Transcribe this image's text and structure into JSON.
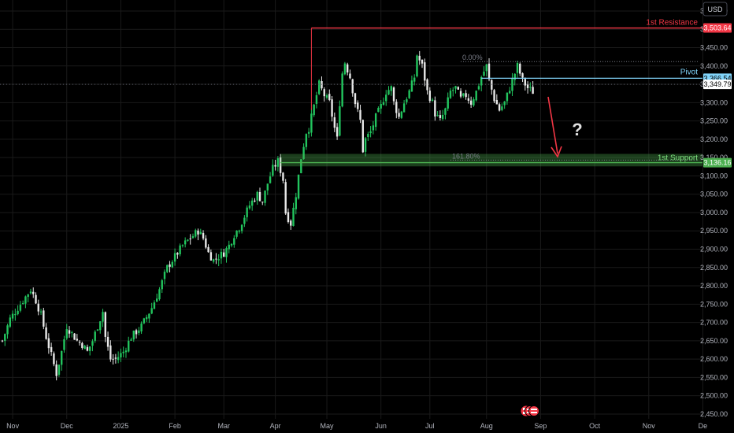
{
  "currency_button": "USD",
  "chart_data": {
    "type": "candlestick",
    "y_ticks": [
      3550,
      3500,
      3450,
      3400,
      3350,
      3300,
      3250,
      3200,
      3150,
      3100,
      3050,
      3000,
      2950,
      2900,
      2850,
      2800,
      2750,
      2700,
      2650,
      2600,
      2550,
      2500,
      2450
    ],
    "y_tick_labels": [
      "3,550.00",
      "3,500.00",
      "3,450.00",
      "3,400.00",
      "3,350.00",
      "3,300.00",
      "3,250.00",
      "3,200.00",
      "3,150.00",
      "3,100.00",
      "3,050.00",
      "3,000.00",
      "2,950.00",
      "2,900.00",
      "2,850.00",
      "2,800.00",
      "2,750.00",
      "2,700.00",
      "2,650.00",
      "2,600.00",
      "2,550.00",
      "2,500.00",
      "2,450.00"
    ],
    "ylim": [
      2437,
      3580
    ],
    "x_ticks": [
      {
        "label": "Nov",
        "i": 4
      },
      {
        "label": "Dec",
        "i": 25
      },
      {
        "label": "2025",
        "i": 46
      },
      {
        "label": "Feb",
        "i": 67
      },
      {
        "label": "Mar",
        "i": 86
      },
      {
        "label": "Apr",
        "i": 106
      },
      {
        "label": "May",
        "i": 126
      },
      {
        "label": "Jun",
        "i": 147
      },
      {
        "label": "Jul",
        "i": 166
      },
      {
        "label": "Aug",
        "i": 188
      },
      {
        "label": "Sep",
        "i": 209
      },
      {
        "label": "Oct",
        "i": 230
      },
      {
        "label": "Nov",
        "i": 251
      },
      {
        "label": "De",
        "i": 272
      }
    ],
    "n_slots": 274,
    "anchors": [
      [
        0,
        2650
      ],
      [
        3,
        2710
      ],
      [
        6,
        2740
      ],
      [
        9,
        2770
      ],
      [
        11,
        2790
      ],
      [
        13,
        2760
      ],
      [
        15,
        2720
      ],
      [
        17,
        2660
      ],
      [
        19,
        2610
      ],
      [
        21,
        2560
      ],
      [
        23,
        2620
      ],
      [
        25,
        2690
      ],
      [
        27,
        2670
      ],
      [
        29,
        2650
      ],
      [
        31,
        2640
      ],
      [
        33,
        2620
      ],
      [
        35,
        2650
      ],
      [
        37,
        2690
      ],
      [
        39,
        2730
      ],
      [
        40,
        2660
      ],
      [
        42,
        2600
      ],
      [
        44,
        2600
      ],
      [
        47,
        2620
      ],
      [
        50,
        2660
      ],
      [
        54,
        2690
      ],
      [
        58,
        2740
      ],
      [
        61,
        2790
      ],
      [
        64,
        2850
      ],
      [
        67,
        2880
      ],
      [
        70,
        2910
      ],
      [
        73,
        2930
      ],
      [
        76,
        2950
      ],
      [
        78,
        2930
      ],
      [
        80,
        2890
      ],
      [
        82,
        2870
      ],
      [
        84,
        2880
      ],
      [
        86,
        2890
      ],
      [
        88,
        2910
      ],
      [
        90,
        2940
      ],
      [
        92,
        2960
      ],
      [
        94,
        2990
      ],
      [
        96,
        3020
      ],
      [
        99,
        3050
      ],
      [
        101,
        3030
      ],
      [
        103,
        3080
      ],
      [
        105,
        3120
      ],
      [
        107,
        3140
      ],
      [
        109,
        3090
      ],
      [
        110,
        3000
      ],
      [
        112,
        2970
      ],
      [
        114,
        3050
      ],
      [
        116,
        3150
      ],
      [
        118,
        3220
      ],
      [
        119,
        3230
      ],
      [
        121,
        3290
      ],
      [
        123,
        3350
      ],
      [
        125,
        3320
      ],
      [
        127,
        3300
      ],
      [
        129,
        3230
      ],
      [
        130,
        3200
      ],
      [
        131,
        3300
      ],
      [
        132,
        3380
      ],
      [
        133,
        3410
      ],
      [
        135,
        3370
      ],
      [
        137,
        3300
      ],
      [
        139,
        3250
      ],
      [
        140,
        3170
      ],
      [
        141,
        3200
      ],
      [
        143,
        3220
      ],
      [
        145,
        3260
      ],
      [
        147,
        3290
      ],
      [
        149,
        3330
      ],
      [
        151,
        3340
      ],
      [
        152,
        3300
      ],
      [
        154,
        3260
      ],
      [
        156,
        3300
      ],
      [
        158,
        3330
      ],
      [
        160,
        3370
      ],
      [
        161,
        3430
      ],
      [
        163,
        3400
      ],
      [
        165,
        3330
      ],
      [
        167,
        3300
      ],
      [
        168,
        3270
      ],
      [
        170,
        3250
      ],
      [
        172,
        3280
      ],
      [
        174,
        3330
      ],
      [
        176,
        3340
      ],
      [
        178,
        3310
      ],
      [
        180,
        3320
      ],
      [
        182,
        3300
      ],
      [
        184,
        3330
      ],
      [
        186,
        3370
      ],
      [
        188,
        3400
      ],
      [
        189,
        3360
      ],
      [
        191,
        3310
      ],
      [
        193,
        3280
      ],
      [
        195,
        3300
      ],
      [
        197,
        3340
      ],
      [
        199,
        3380
      ],
      [
        200,
        3400
      ],
      [
        202,
        3360
      ],
      [
        204,
        3340
      ],
      [
        206,
        3330
      ]
    ],
    "levels": {
      "resistance": {
        "label": "1st Resistance",
        "price": 3503.64,
        "price_label": "3,503.64",
        "color": "#f23645",
        "start_i": 120
      },
      "pivot": {
        "label": "Pivot",
        "price": 3366.54,
        "price_label": "3,366.54",
        "color": "#81d4fa",
        "start_i": 186
      },
      "support": {
        "label": "1st Support",
        "price": 3136.16,
        "price_label": "3,136.16",
        "color": "#4caf50",
        "zone_top": 3160,
        "zone_bottom": 3126,
        "start_i": 108
      },
      "last_price": {
        "price": 3349.79,
        "price_label": "3,349.79"
      }
    },
    "fib_labels": [
      {
        "text": "0.00%",
        "price": 3412,
        "start_i": 178
      },
      {
        "text": "161.80%",
        "price": 3143,
        "start_i": 174
      }
    ],
    "annotation": {
      "text": "?"
    },
    "colors": {
      "up": "#22c55e",
      "down": "#e8e8e8",
      "grid": "#1a1a1a",
      "axis_text": "#b2b5be"
    }
  }
}
